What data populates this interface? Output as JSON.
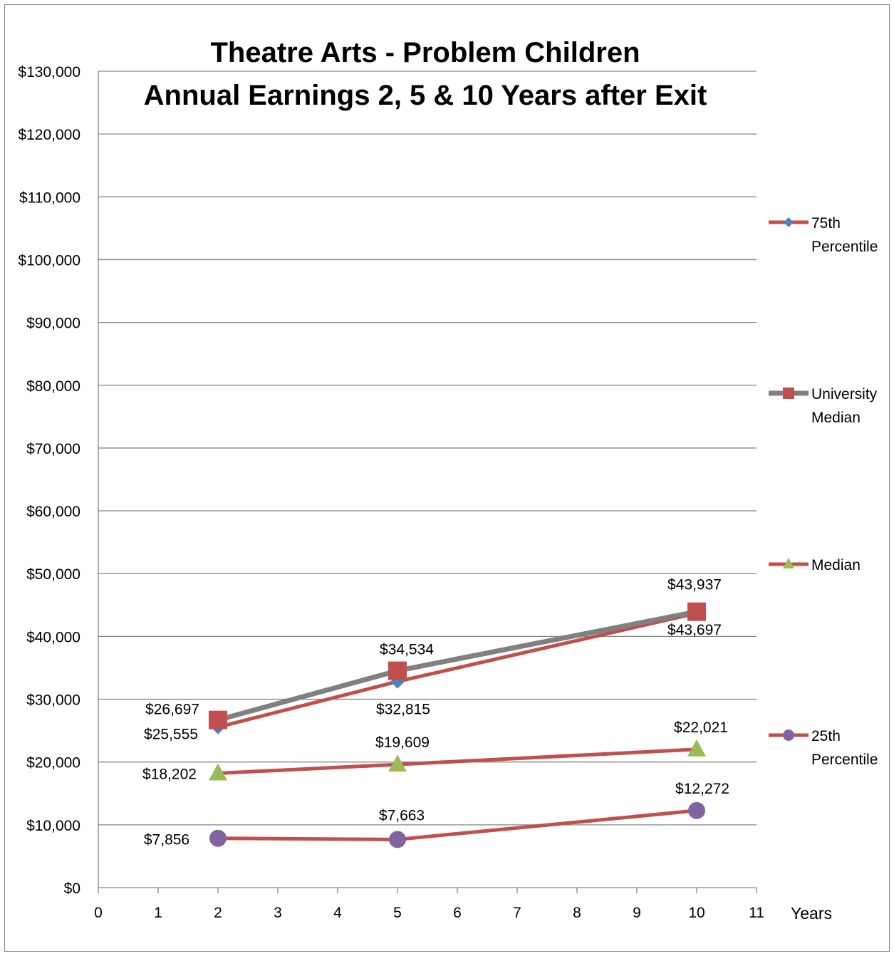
{
  "chart_data": {
    "type": "line",
    "title": [
      "Theatre Arts - Problem Children",
      "Annual Earnings 2, 5 & 10 Years after Exit"
    ],
    "xlabel": "Years",
    "ylabel": "",
    "xlim": [
      0,
      11
    ],
    "ylim": [
      0,
      130000
    ],
    "x_ticks": [
      0,
      1,
      2,
      3,
      4,
      5,
      6,
      7,
      8,
      9,
      10,
      11
    ],
    "y_ticks": [
      0,
      10000,
      20000,
      30000,
      40000,
      50000,
      60000,
      70000,
      80000,
      90000,
      100000,
      110000,
      120000,
      130000
    ],
    "y_tick_labels": [
      "$0",
      "$10,000",
      "$20,000",
      "$30,000",
      "$40,000",
      "$50,000",
      "$60,000",
      "$70,000",
      "$80,000",
      "$90,000",
      "$100,000",
      "$110,000",
      "$120,000",
      "$130,000"
    ],
    "grid": true,
    "legend_position": "right",
    "x": [
      2,
      5,
      10
    ],
    "series": [
      {
        "name": "75th Percentile",
        "legend_lines": [
          "75th",
          "Percentile"
        ],
        "values": [
          25555,
          32815,
          43697
        ],
        "labels": [
          "$25,555",
          "$32,815",
          "$43,697"
        ],
        "line_color": "#c0504d",
        "marker": "diamond",
        "marker_color": "#4f81bd"
      },
      {
        "name": "University Median",
        "legend_lines": [
          "University",
          "Median"
        ],
        "values": [
          26697,
          34534,
          43937
        ],
        "labels": [
          "$26,697",
          "$34,534",
          "$43,937"
        ],
        "line_color": "#808080",
        "marker": "square",
        "marker_color": "#c0504d"
      },
      {
        "name": "Median",
        "legend_lines": [
          "Median"
        ],
        "values": [
          18202,
          19609,
          22021
        ],
        "labels": [
          "$18,202",
          "$19,609",
          "$22,021"
        ],
        "line_color": "#c0504d",
        "marker": "triangle",
        "marker_color": "#9bbb59"
      },
      {
        "name": "25th Percentile",
        "legend_lines": [
          "25th",
          "Percentile"
        ],
        "values": [
          7856,
          7663,
          12272
        ],
        "labels": [
          "$7,856",
          "$7,663",
          "$12,272"
        ],
        "line_color": "#c0504d",
        "marker": "circle",
        "marker_color": "#8064a2"
      }
    ]
  }
}
